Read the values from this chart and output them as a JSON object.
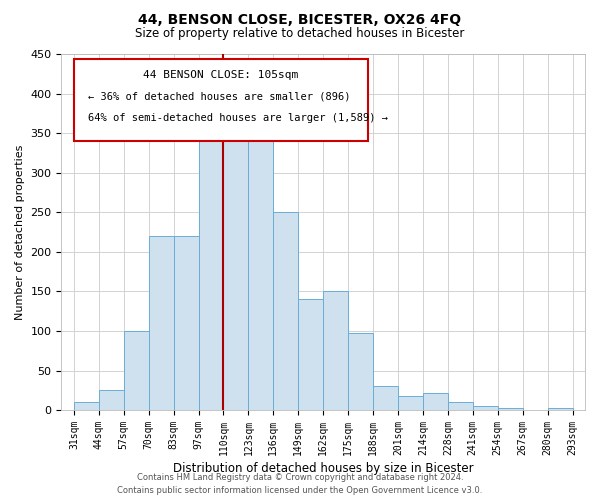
{
  "title": "44, BENSON CLOSE, BICESTER, OX26 4FQ",
  "subtitle": "Size of property relative to detached houses in Bicester",
  "xlabel": "Distribution of detached houses by size in Bicester",
  "ylabel": "Number of detached properties",
  "bin_labels": [
    "31sqm",
    "44sqm",
    "57sqm",
    "70sqm",
    "83sqm",
    "97sqm",
    "110sqm",
    "123sqm",
    "136sqm",
    "149sqm",
    "162sqm",
    "175sqm",
    "188sqm",
    "201sqm",
    "214sqm",
    "228sqm",
    "241sqm",
    "254sqm",
    "267sqm",
    "280sqm",
    "293sqm"
  ],
  "bar_values": [
    10,
    25,
    100,
    220,
    220,
    360,
    365,
    355,
    250,
    140,
    150,
    98,
    30,
    18,
    22,
    10,
    5,
    3,
    0,
    3
  ],
  "bar_color": "#cfe0ef",
  "bar_edge_color": "#6aadd5",
  "vline_x": 6.0,
  "vline_color": "#aa0000",
  "ylim": [
    0,
    450
  ],
  "yticks": [
    0,
    50,
    100,
    150,
    200,
    250,
    300,
    350,
    400,
    450
  ],
  "annotation_title": "44 BENSON CLOSE: 105sqm",
  "annotation_line1": "← 36% of detached houses are smaller (896)",
  "annotation_line2": "64% of semi-detached houses are larger (1,589) →",
  "footer_line1": "Contains HM Land Registry data © Crown copyright and database right 2024.",
  "footer_line2": "Contains public sector information licensed under the Open Government Licence v3.0.",
  "background_color": "#ffffff",
  "grid_color": "#cccccc"
}
